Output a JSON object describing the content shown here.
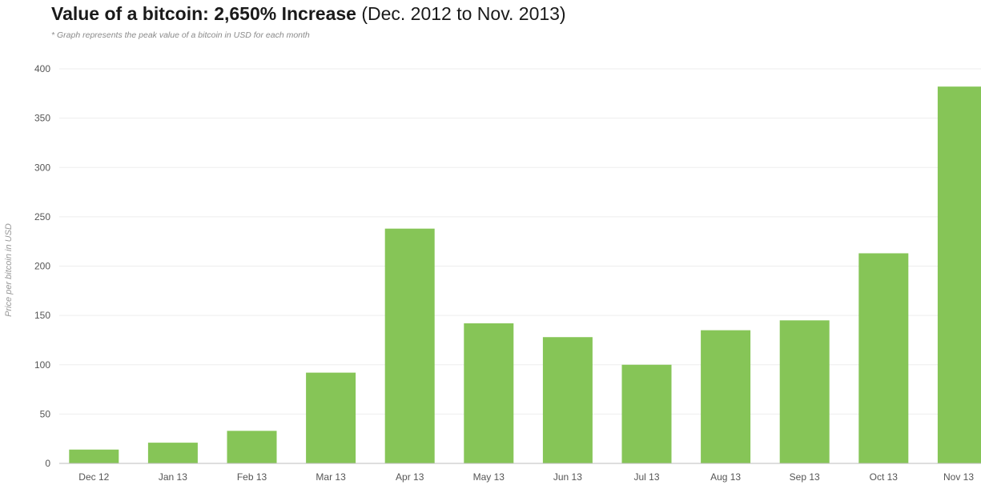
{
  "header": {
    "title_bold": "Value of a bitcoin: 2,650% Increase",
    "title_rest": " (Dec. 2012 to Nov. 2013)",
    "subtitle": "* Graph represents the peak value of a bitcoin in USD for each month"
  },
  "colors": {
    "bar": "#86c557",
    "grid": "#eeeeee",
    "axis": "#bdbdbd"
  },
  "chart_data": {
    "type": "bar",
    "title": "Value of a bitcoin: 2,650% Increase (Dec. 2012 to Nov. 2013)",
    "subtitle": "* Graph represents the peak value of a bitcoin in USD for each month",
    "xlabel": "",
    "ylabel": "Price per bitcoin in USD",
    "categories": [
      "Dec 12",
      "Jan 13",
      "Feb 13",
      "Mar 13",
      "Apr 13",
      "May 13",
      "Jun 13",
      "Jul 13",
      "Aug 13",
      "Sep 13",
      "Oct 13",
      "Nov 13"
    ],
    "values": [
      14,
      21,
      33,
      92,
      238,
      142,
      128,
      100,
      135,
      145,
      213,
      382
    ],
    "ylim": [
      0,
      400
    ],
    "yticks": [
      0,
      50,
      100,
      150,
      200,
      250,
      300,
      350,
      400
    ],
    "grid": true,
    "legend": "none"
  }
}
